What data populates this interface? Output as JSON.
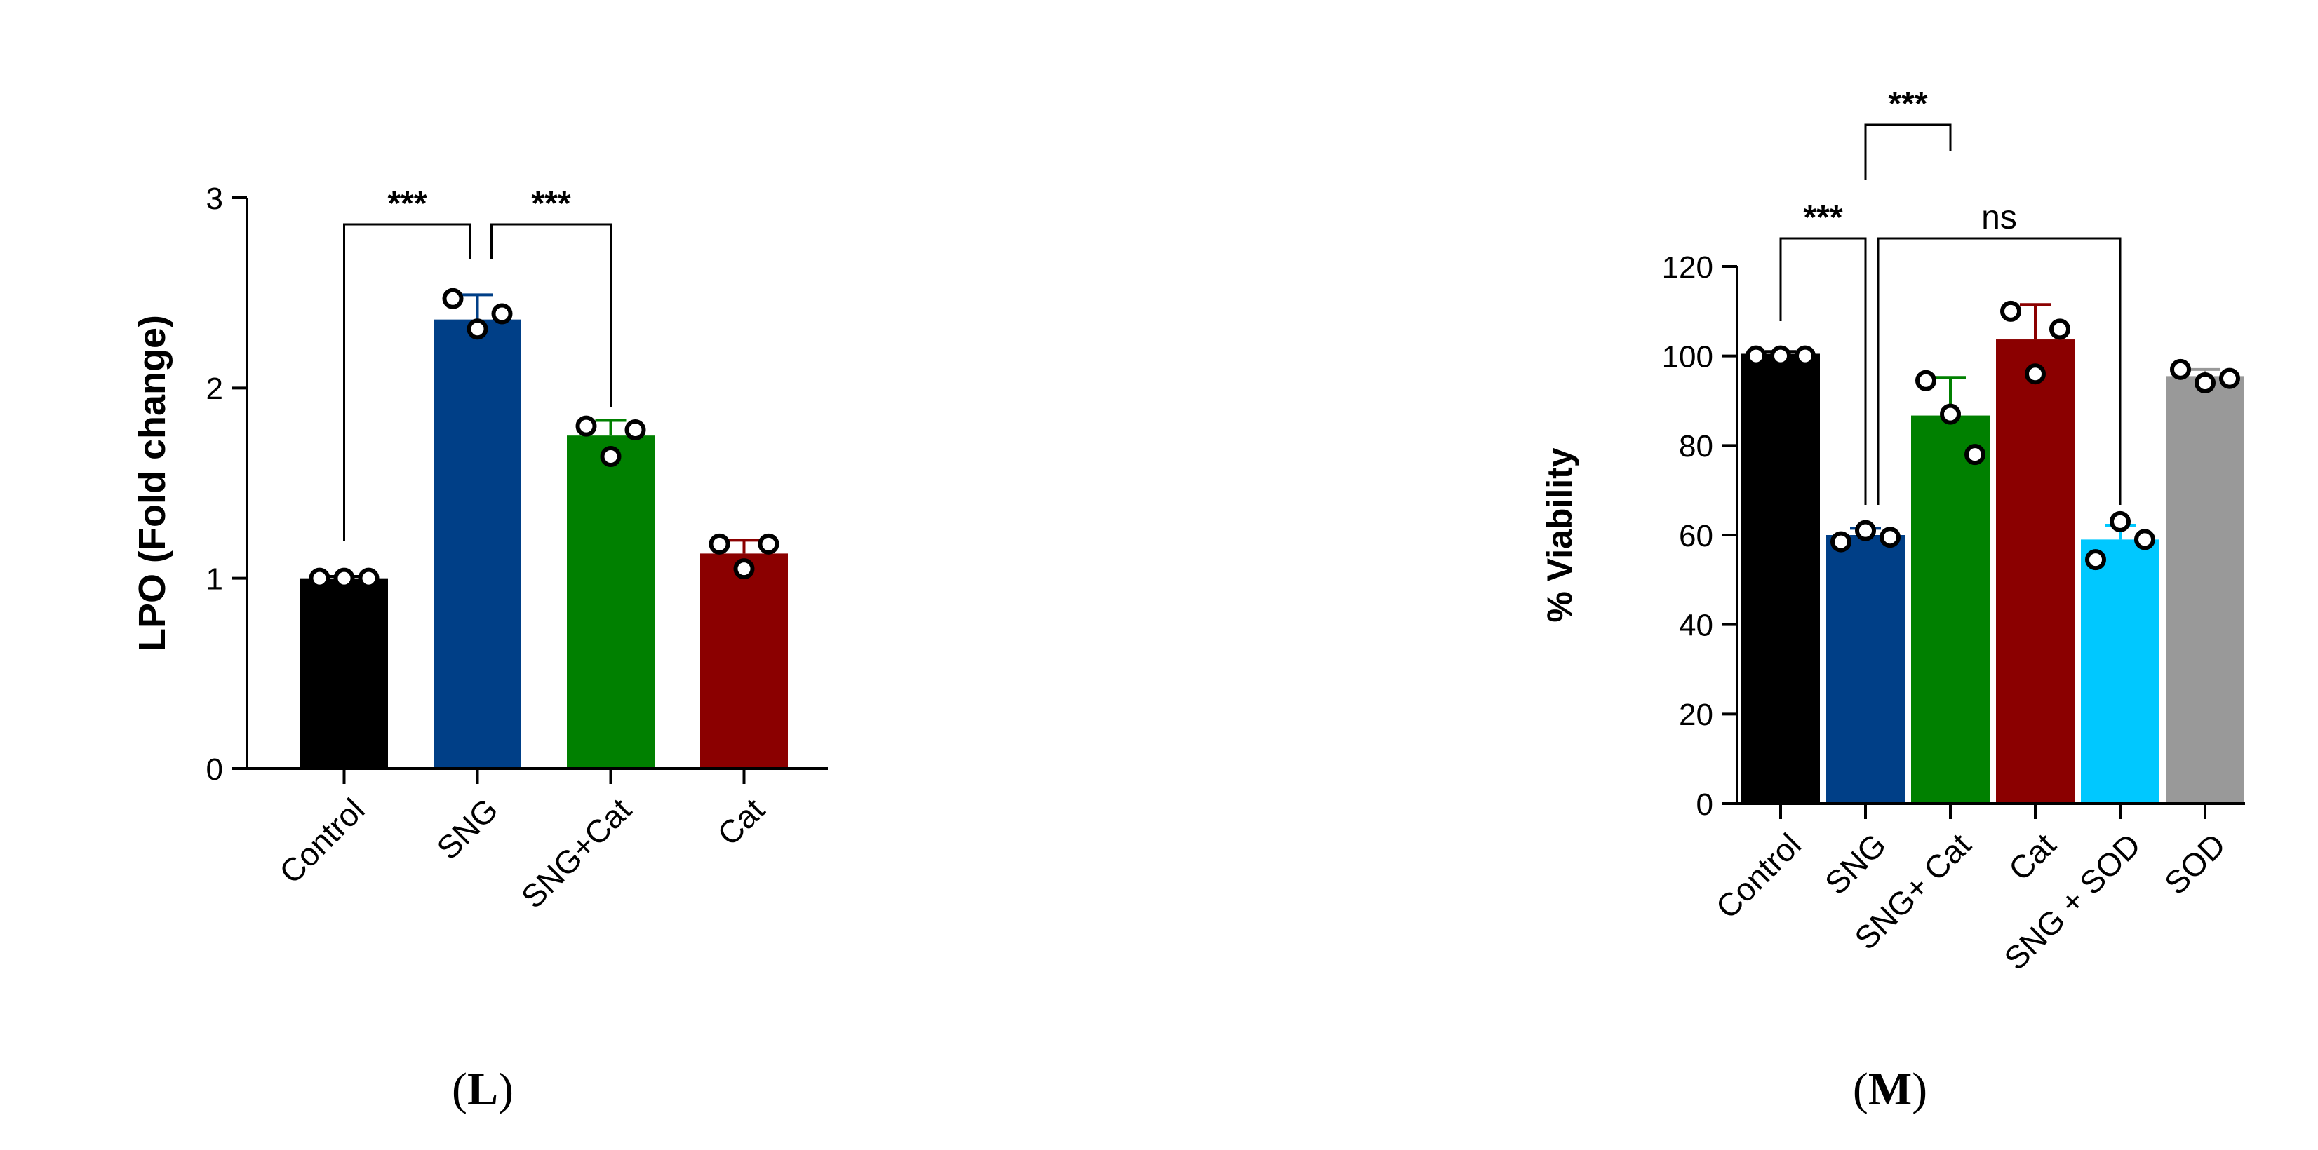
{
  "chart_data": [
    {
      "type": "bar",
      "panel_label": "L",
      "categories": [
        "Control",
        "SNG",
        "SNG+Cat",
        "Cat"
      ],
      "values": [
        1.0,
        2.36,
        1.75,
        1.13
      ],
      "errors": [
        0.01,
        0.13,
        0.08,
        0.07
      ],
      "colors": [
        "#000000",
        "#003f87",
        "#008000",
        "#8b0000"
      ],
      "points": [
        [
          1.0,
          1.0,
          1.0
        ],
        [
          2.47,
          2.31,
          2.39
        ],
        [
          1.8,
          1.64,
          1.78
        ],
        [
          1.18,
          1.05,
          1.18
        ]
      ],
      "ylabel": "LPO (Fold change)",
      "ylim": [
        0,
        3
      ],
      "yticks": [
        "0",
        "1",
        "2",
        "3"
      ],
      "annotations": [
        {
          "from": 0,
          "to": 1,
          "label": "***"
        },
        {
          "from": 1,
          "to": 2,
          "label": "***"
        }
      ]
    },
    {
      "type": "bar",
      "panel_label": "M",
      "categories": [
        "Control",
        "SNG",
        "SNG+ Cat",
        "Cat",
        "SNG + SOD",
        "SOD"
      ],
      "values": [
        100.5,
        60.0,
        86.7,
        103.7,
        59.0,
        95.5
      ],
      "errors": [
        0.5,
        1.5,
        8.5,
        7.8,
        3.2,
        1.5
      ],
      "colors": [
        "#000000",
        "#003f87",
        "#008000",
        "#8b0000",
        "#00c8ff",
        "#999999"
      ],
      "points": [
        [
          100,
          100,
          100
        ],
        [
          58.5,
          61,
          59.5
        ],
        [
          94.5,
          87,
          78
        ],
        [
          110,
          96,
          106
        ],
        [
          54.5,
          63,
          59
        ],
        [
          97,
          94,
          95
        ]
      ],
      "ylabel": "% Viability",
      "ylim": [
        0,
        120
      ],
      "yticks": [
        "0",
        "20",
        "40",
        "60",
        "80",
        "100",
        "120"
      ],
      "annotations": [
        {
          "from": 0,
          "to": 1,
          "label": "***"
        },
        {
          "from": 1,
          "to": 2,
          "label": "***"
        },
        {
          "from": 1,
          "to": 4,
          "label": "ns"
        }
      ]
    }
  ]
}
